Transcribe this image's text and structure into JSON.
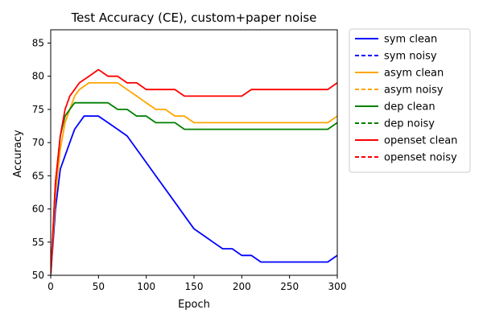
{
  "chart_data": {
    "type": "line",
    "title": "Test Accuracy (CE), custom+paper noise",
    "xlabel": "Epoch",
    "ylabel": "Accuracy",
    "xlim": [
      0,
      300
    ],
    "ylim": [
      50,
      87
    ],
    "xticks": [
      0,
      50,
      100,
      150,
      200,
      250,
      300
    ],
    "yticks": [
      50,
      55,
      60,
      65,
      70,
      75,
      80,
      85
    ],
    "grid": false,
    "legend_position": "outside-right",
    "series": [
      {
        "name": "sym clean",
        "color": "#0000ff",
        "dash": "solid",
        "x": [
          0,
          5,
          10,
          15,
          20,
          25,
          30,
          35,
          40,
          50,
          60,
          70,
          80,
          90,
          100,
          110,
          120,
          130,
          140,
          150,
          160,
          170,
          180,
          190,
          200,
          210,
          220,
          230,
          240,
          250,
          260,
          270,
          280,
          290,
          300
        ],
        "y": [
          50,
          60,
          66,
          68,
          70,
          72,
          73,
          74,
          74,
          74,
          73,
          72,
          71,
          69,
          67,
          65,
          63,
          61,
          59,
          57,
          56,
          55,
          54,
          54,
          53,
          53,
          52,
          52,
          52,
          52,
          52,
          52,
          52,
          52,
          53
        ]
      },
      {
        "name": "sym noisy",
        "color": "#0000ff",
        "dash": "dashed",
        "x": [],
        "y": []
      },
      {
        "name": "asym clean",
        "color": "#ffa500",
        "dash": "solid",
        "x": [
          0,
          5,
          10,
          15,
          20,
          25,
          30,
          40,
          50,
          60,
          70,
          80,
          90,
          100,
          110,
          120,
          130,
          140,
          150,
          160,
          170,
          180,
          190,
          200,
          210,
          220,
          230,
          240,
          250,
          260,
          270,
          280,
          290,
          300
        ],
        "y": [
          50,
          62,
          69,
          73,
          75,
          77,
          78,
          79,
          79,
          79,
          79,
          78,
          77,
          76,
          75,
          75,
          74,
          74,
          73,
          73,
          73,
          73,
          73,
          73,
          73,
          73,
          73,
          73,
          73,
          73,
          73,
          73,
          73,
          74
        ]
      },
      {
        "name": "asym noisy",
        "color": "#ffa500",
        "dash": "dashed",
        "x": [],
        "y": []
      },
      {
        "name": "dep clean",
        "color": "#008000",
        "dash": "solid",
        "x": [
          0,
          5,
          10,
          15,
          20,
          25,
          30,
          40,
          50,
          60,
          70,
          80,
          90,
          100,
          110,
          120,
          130,
          140,
          150,
          160,
          170,
          180,
          190,
          200,
          210,
          220,
          230,
          240,
          250,
          260,
          270,
          280,
          290,
          300
        ],
        "y": [
          50,
          64,
          71,
          74,
          75,
          76,
          76,
          76,
          76,
          76,
          75,
          75,
          74,
          74,
          73,
          73,
          73,
          72,
          72,
          72,
          72,
          72,
          72,
          72,
          72,
          72,
          72,
          72,
          72,
          72,
          72,
          72,
          72,
          73
        ]
      },
      {
        "name": "dep noisy",
        "color": "#008000",
        "dash": "dashed",
        "x": [],
        "y": []
      },
      {
        "name": "openset clean",
        "color": "#ff0000",
        "dash": "solid",
        "x": [
          0,
          5,
          10,
          15,
          20,
          25,
          30,
          40,
          50,
          60,
          70,
          80,
          90,
          100,
          110,
          120,
          130,
          140,
          150,
          160,
          170,
          180,
          190,
          200,
          210,
          220,
          230,
          240,
          250,
          260,
          270,
          280,
          290,
          300
        ],
        "y": [
          50,
          64,
          71,
          75,
          77,
          78,
          79,
          80,
          81,
          80,
          80,
          79,
          79,
          78,
          78,
          78,
          78,
          77,
          77,
          77,
          77,
          77,
          77,
          77,
          78,
          78,
          78,
          78,
          78,
          78,
          78,
          78,
          78,
          79
        ]
      },
      {
        "name": "openset noisy",
        "color": "#ff0000",
        "dash": "dashed",
        "x": [],
        "y": []
      }
    ]
  }
}
